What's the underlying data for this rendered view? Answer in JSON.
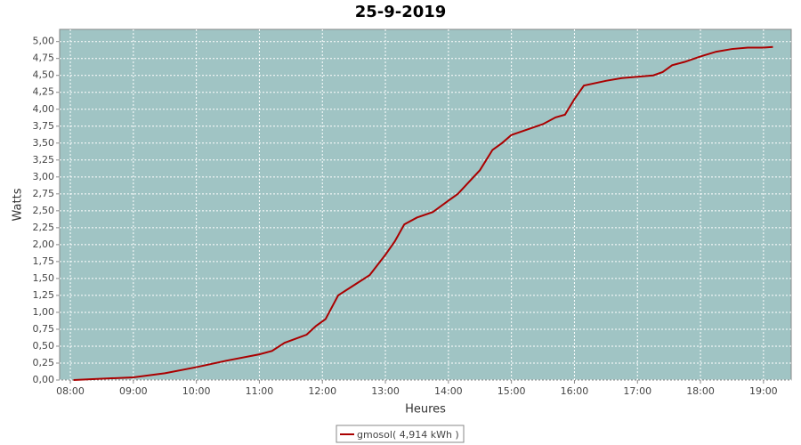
{
  "chart_data": {
    "type": "line",
    "title": "25-9-2019",
    "x_label": "Heures",
    "y_label": "Watts",
    "x": [
      8.05,
      8.5,
      9.0,
      9.5,
      10.0,
      10.5,
      11.0,
      11.2,
      11.4,
      11.75,
      11.9,
      12.05,
      12.25,
      12.5,
      12.75,
      13.0,
      13.15,
      13.3,
      13.5,
      13.75,
      14.0,
      14.15,
      14.3,
      14.5,
      14.6,
      14.7,
      14.85,
      15.0,
      15.25,
      15.5,
      15.7,
      15.85,
      16.0,
      16.15,
      16.5,
      16.75,
      17.0,
      17.25,
      17.4,
      17.55,
      17.75,
      18.0,
      18.25,
      18.5,
      18.75,
      19.0,
      19.15
    ],
    "series": [
      {
        "name": "gmosol( 4,914 kWh )",
        "color": "#aa0000",
        "values": [
          0,
          0.02,
          0.04,
          0.1,
          0.19,
          0.29,
          0.38,
          0.43,
          0.55,
          0.67,
          0.8,
          0.9,
          1.25,
          1.4,
          1.55,
          1.85,
          2.05,
          2.3,
          2.4,
          2.48,
          2.65,
          2.75,
          2.9,
          3.1,
          3.25,
          3.4,
          3.5,
          3.62,
          3.7,
          3.78,
          3.88,
          3.92,
          4.15,
          4.35,
          4.42,
          4.46,
          4.48,
          4.5,
          4.55,
          4.65,
          4.7,
          4.78,
          4.85,
          4.89,
          4.91,
          4.91,
          4.92
        ]
      }
    ],
    "xlim": [
      7.83,
      19.44
    ],
    "xticks": [
      {
        "value": 8,
        "label": "08:00"
      },
      {
        "value": 9,
        "label": "09:00"
      },
      {
        "value": 10,
        "label": "10:00"
      },
      {
        "value": 11,
        "label": "11:00"
      },
      {
        "value": 12,
        "label": "12:00"
      },
      {
        "value": 13,
        "label": "13:00"
      },
      {
        "value": 14,
        "label": "14:00"
      },
      {
        "value": 15,
        "label": "15:00"
      },
      {
        "value": 16,
        "label": "16:00"
      },
      {
        "value": 17,
        "label": "17:00"
      },
      {
        "value": 18,
        "label": "18:00"
      },
      {
        "value": 19,
        "label": "19:00"
      }
    ],
    "ylim": [
      0,
      5.18
    ],
    "yticks": [
      {
        "value": 0,
        "label": "0,00"
      },
      {
        "value": 0.25,
        "label": "0,25"
      },
      {
        "value": 0.5,
        "label": "0,50"
      },
      {
        "value": 0.75,
        "label": "0,75"
      },
      {
        "value": 1,
        "label": "1,00"
      },
      {
        "value": 1.25,
        "label": "1,25"
      },
      {
        "value": 1.5,
        "label": "1,50"
      },
      {
        "value": 1.75,
        "label": "1,75"
      },
      {
        "value": 2,
        "label": "2,00"
      },
      {
        "value": 2.25,
        "label": "2,25"
      },
      {
        "value": 2.5,
        "label": "2,50"
      },
      {
        "value": 2.75,
        "label": "2,75"
      },
      {
        "value": 3,
        "label": "3,00"
      },
      {
        "value": 3.25,
        "label": "3,25"
      },
      {
        "value": 3.5,
        "label": "3,50"
      },
      {
        "value": 3.75,
        "label": "3,75"
      },
      {
        "value": 4,
        "label": "4,00"
      },
      {
        "value": 4.25,
        "label": "4,25"
      },
      {
        "value": 4.5,
        "label": "4,50"
      },
      {
        "value": 4.75,
        "label": "4,75"
      },
      {
        "value": 5,
        "label": "5,00"
      }
    ],
    "grid": true,
    "plot_background": "#a0c4c4",
    "legend": "bottom"
  }
}
